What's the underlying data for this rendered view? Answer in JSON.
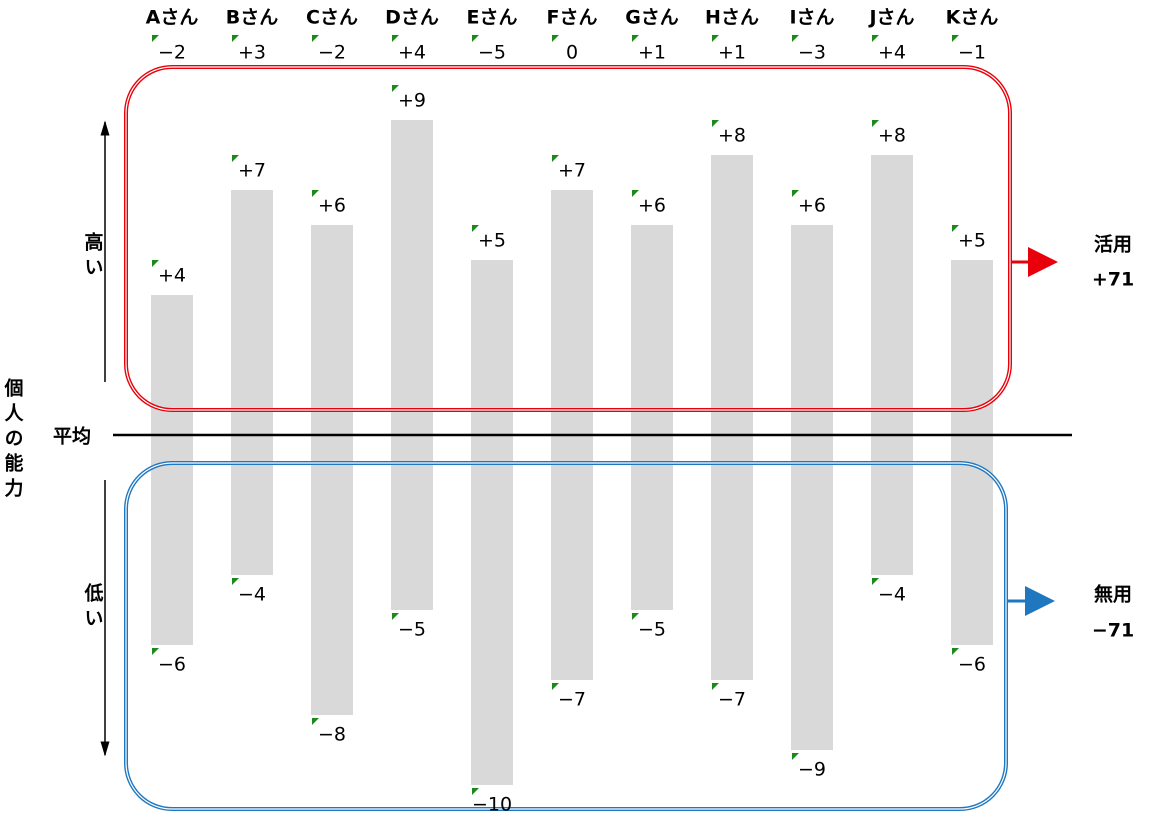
{
  "chart_data": {
    "type": "bar",
    "categories": [
      "Aさん",
      "Bさん",
      "Cさん",
      "Dさん",
      "Eさん",
      "Fさん",
      "Gさん",
      "Hさん",
      "Iさん",
      "Jさん",
      "Kさん"
    ],
    "series": [
      {
        "color": "#d9d9d9",
        "values": [
          4,
          7,
          6,
          9,
          5,
          7,
          6,
          8,
          6,
          8,
          5
        ],
        "value_labels": [
          "+4",
          "+7",
          "+6",
          "+9",
          "+5",
          "+7",
          "+6",
          "+8",
          "+6",
          "+8",
          "+5"
        ]
      },
      {
        "color": "#d9d9d9",
        "values": [
          -6,
          -4,
          -8,
          -5,
          -10,
          -7,
          -5,
          -7,
          -9,
          -4,
          -6
        ],
        "value_labels": [
          "−6",
          "−4",
          "−8",
          "−5",
          "−10",
          "−7",
          "−5",
          "−7",
          "−9",
          "−4",
          "−6"
        ]
      }
    ],
    "net": {
      "values": [
        -2,
        3,
        -2,
        4,
        -5,
        0,
        1,
        1,
        -3,
        4,
        -1
      ],
      "value_labels": [
        "−2",
        "+3",
        "−2",
        "+4",
        "−5",
        "0",
        "+1",
        "+1",
        "−3",
        "+4",
        "−1"
      ]
    },
    "ylim": [
      -10,
      9
    ],
    "axis_label": "個人の能力",
    "high_label": "高い",
    "low_label": "低い",
    "baseline_label": "平均",
    "totals": [
      {
        "label": "活用",
        "value": 71,
        "value_label": "+71",
        "color": "#e8000b"
      },
      {
        "label": "無用",
        "value": -71,
        "value_label": "−71",
        "color": "#1f77c0"
      }
    ]
  }
}
